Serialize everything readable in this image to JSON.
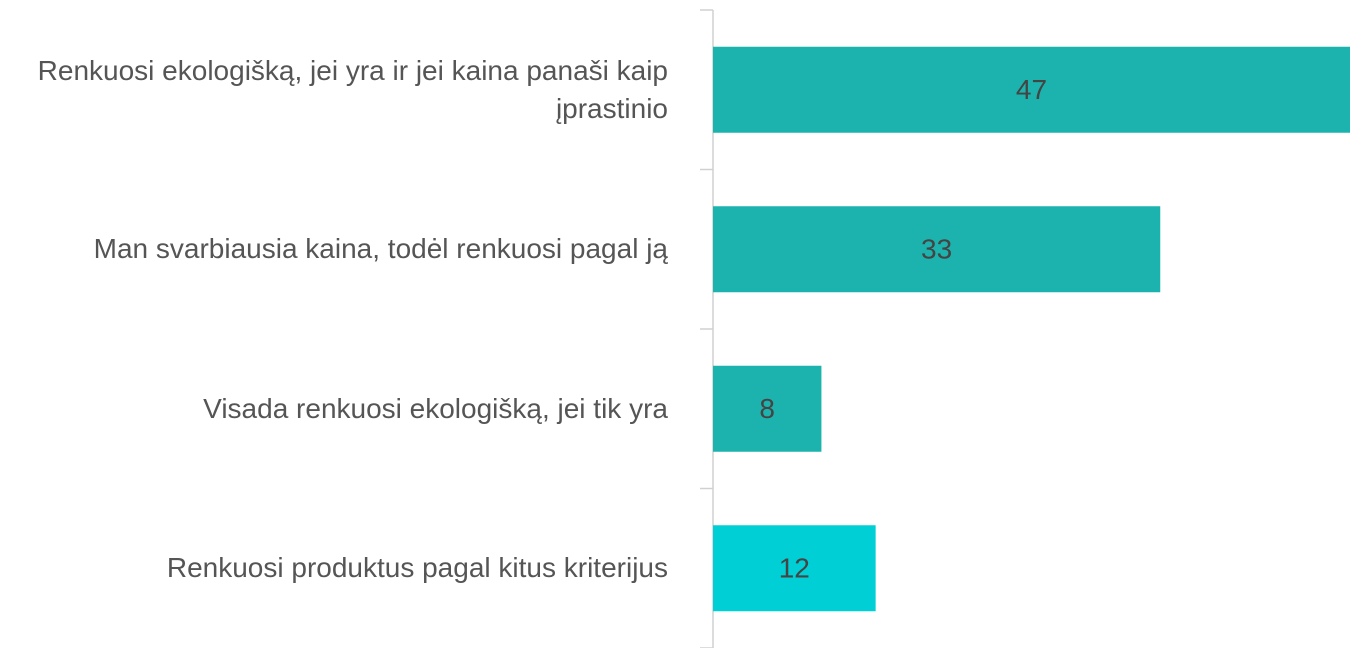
{
  "chart_data": {
    "type": "bar",
    "orientation": "horizontal",
    "categories": [
      "Renkuosi ekologišką, jei yra ir jei kaina panaši kaip įprastinio",
      "Man svarbiausia kaina, todėl renkuosi pagal ją",
      "Visada renkuosi ekologišką, jei tik yra",
      "Renkuosi produktus pagal kitus kriterijus"
    ],
    "values": [
      47,
      33,
      8,
      12
    ],
    "colors": [
      "#1cb3ae",
      "#1cb3ae",
      "#1cb3ae",
      "#00cfd5"
    ]
  }
}
